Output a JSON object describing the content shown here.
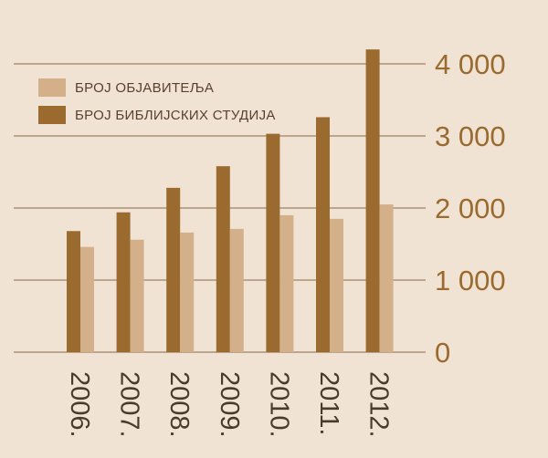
{
  "chart_data": {
    "type": "bar",
    "categories": [
      "2006.",
      "2007.",
      "2008.",
      "2009.",
      "2010.",
      "2011.",
      "2012."
    ],
    "series": [
      {
        "name": "БРОЈ БИБЛИЈСКИХ СТУДИЈА",
        "values": [
          1680,
          1940,
          2280,
          2580,
          3030,
          3260,
          4200
        ],
        "color": "#9a6a2e"
      },
      {
        "name": "БРОЈ ОБЈАВИТЕЉА",
        "values": [
          1460,
          1560,
          1660,
          1710,
          1900,
          1850,
          2050
        ],
        "color": "#d4b08a"
      }
    ],
    "yticks": [
      "0",
      "1 000",
      "2 000",
      "3 000",
      "4 000"
    ],
    "ytick_values": [
      0,
      1000,
      2000,
      3000,
      4000
    ],
    "ylim": [
      0,
      4000
    ],
    "grid": true,
    "legend": "top-left",
    "legend_order": [
      1,
      0
    ]
  },
  "colors": {
    "background": "#f0e3d3",
    "gridline": "#8a6a4a",
    "axis_label": "#9a6a2e",
    "category_label": "#4a3a2c"
  }
}
